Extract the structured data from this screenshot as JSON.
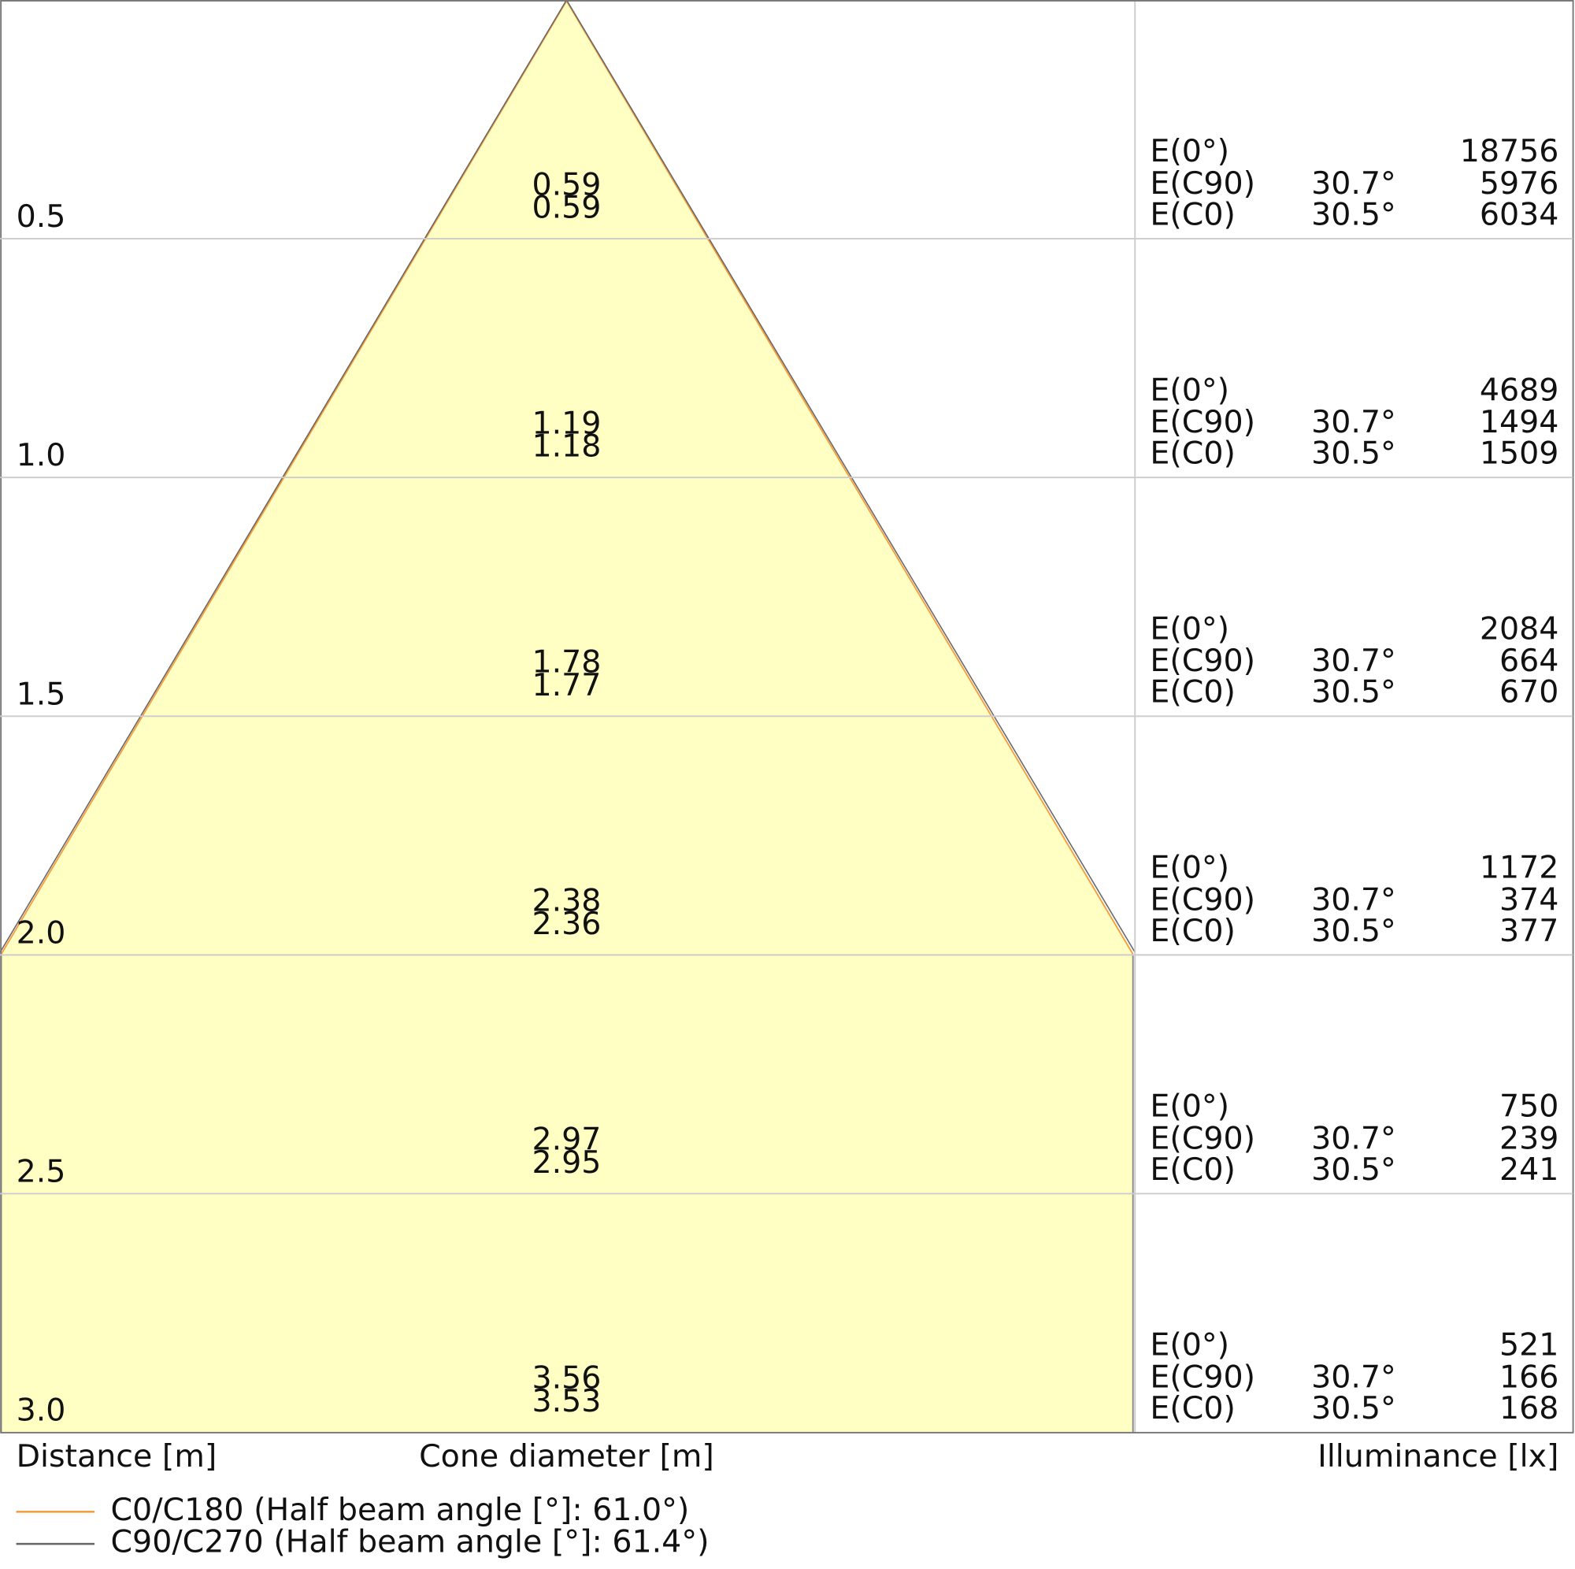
{
  "rows": [
    {
      "distance": "0.5",
      "diameters": [
        "0.59",
        "0.59"
      ],
      "e0": "18756",
      "ec90_angle": "30.7°",
      "ec90": "5976",
      "ec0_angle": "30.5°",
      "ec0": "6034"
    },
    {
      "distance": "1.0",
      "diameters": [
        "1.19",
        "1.18"
      ],
      "e0": "4689",
      "ec90_angle": "30.7°",
      "ec90": "1494",
      "ec0_angle": "30.5°",
      "ec0": "1509"
    },
    {
      "distance": "1.5",
      "diameters": [
        "1.78",
        "1.77"
      ],
      "e0": "2084",
      "ec90_angle": "30.7°",
      "ec90": "664",
      "ec0_angle": "30.5°",
      "ec0": "670"
    },
    {
      "distance": "2.0",
      "diameters": [
        "2.38",
        "2.36"
      ],
      "e0": "1172",
      "ec90_angle": "30.7°",
      "ec90": "374",
      "ec0_angle": "30.5°",
      "ec0": "377"
    },
    {
      "distance": "2.5",
      "diameters": [
        "2.97",
        "2.95"
      ],
      "e0": "750",
      "ec90_angle": "30.7°",
      "ec90": "239",
      "ec0_angle": "30.5°",
      "ec0": "241"
    },
    {
      "distance": "3.0",
      "diameters": [
        "3.56",
        "3.53"
      ],
      "e0": "521",
      "ec90_angle": "30.7°",
      "ec90": "166",
      "ec0_angle": "30.5°",
      "ec0": "168"
    }
  ],
  "illuminance_labels": {
    "e0": "E(0°)",
    "ec90": "E(C90)",
    "ec0": "E(C0)"
  },
  "axis_labels": {
    "distance": "Distance [m]",
    "cone": "Cone diameter [m]",
    "illuminance": "Illuminance [lx]"
  },
  "legend": [
    {
      "label": "C0/C180 (Half beam angle [°]: 61.0°)",
      "color": "#f5a040"
    },
    {
      "label": "C90/C270 (Half beam angle [°]: 61.4°)",
      "color": "#666666"
    }
  ]
}
